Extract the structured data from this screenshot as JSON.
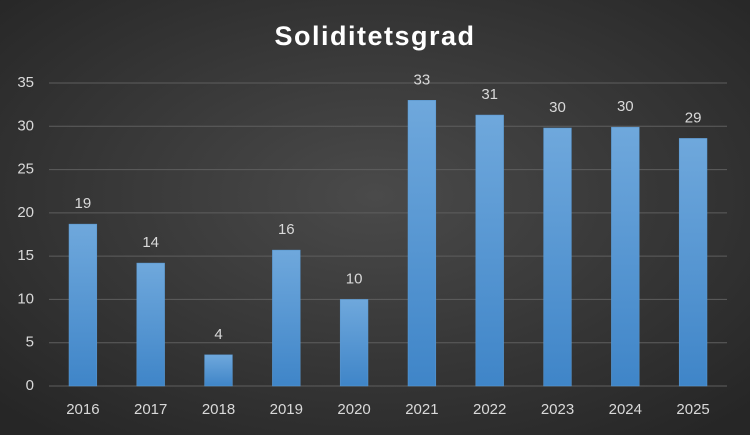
{
  "chart_data": {
    "type": "bar",
    "title": "Soliditetsgrad",
    "categories": [
      "2016",
      "2017",
      "2018",
      "2019",
      "2020",
      "2021",
      "2022",
      "2023",
      "2024",
      "2025"
    ],
    "values": [
      18.7,
      14.2,
      3.6,
      15.7,
      10.0,
      33.0,
      31.3,
      29.8,
      29.9,
      28.6
    ],
    "value_labels": [
      "19",
      "14",
      "4",
      "16",
      "10",
      "33",
      "31",
      "30",
      "30",
      "29"
    ],
    "color": "#5b9bd5",
    "ylim": [
      0,
      35
    ],
    "yticks": [
      0,
      5,
      10,
      15,
      20,
      25,
      30,
      35
    ],
    "grid": true
  }
}
